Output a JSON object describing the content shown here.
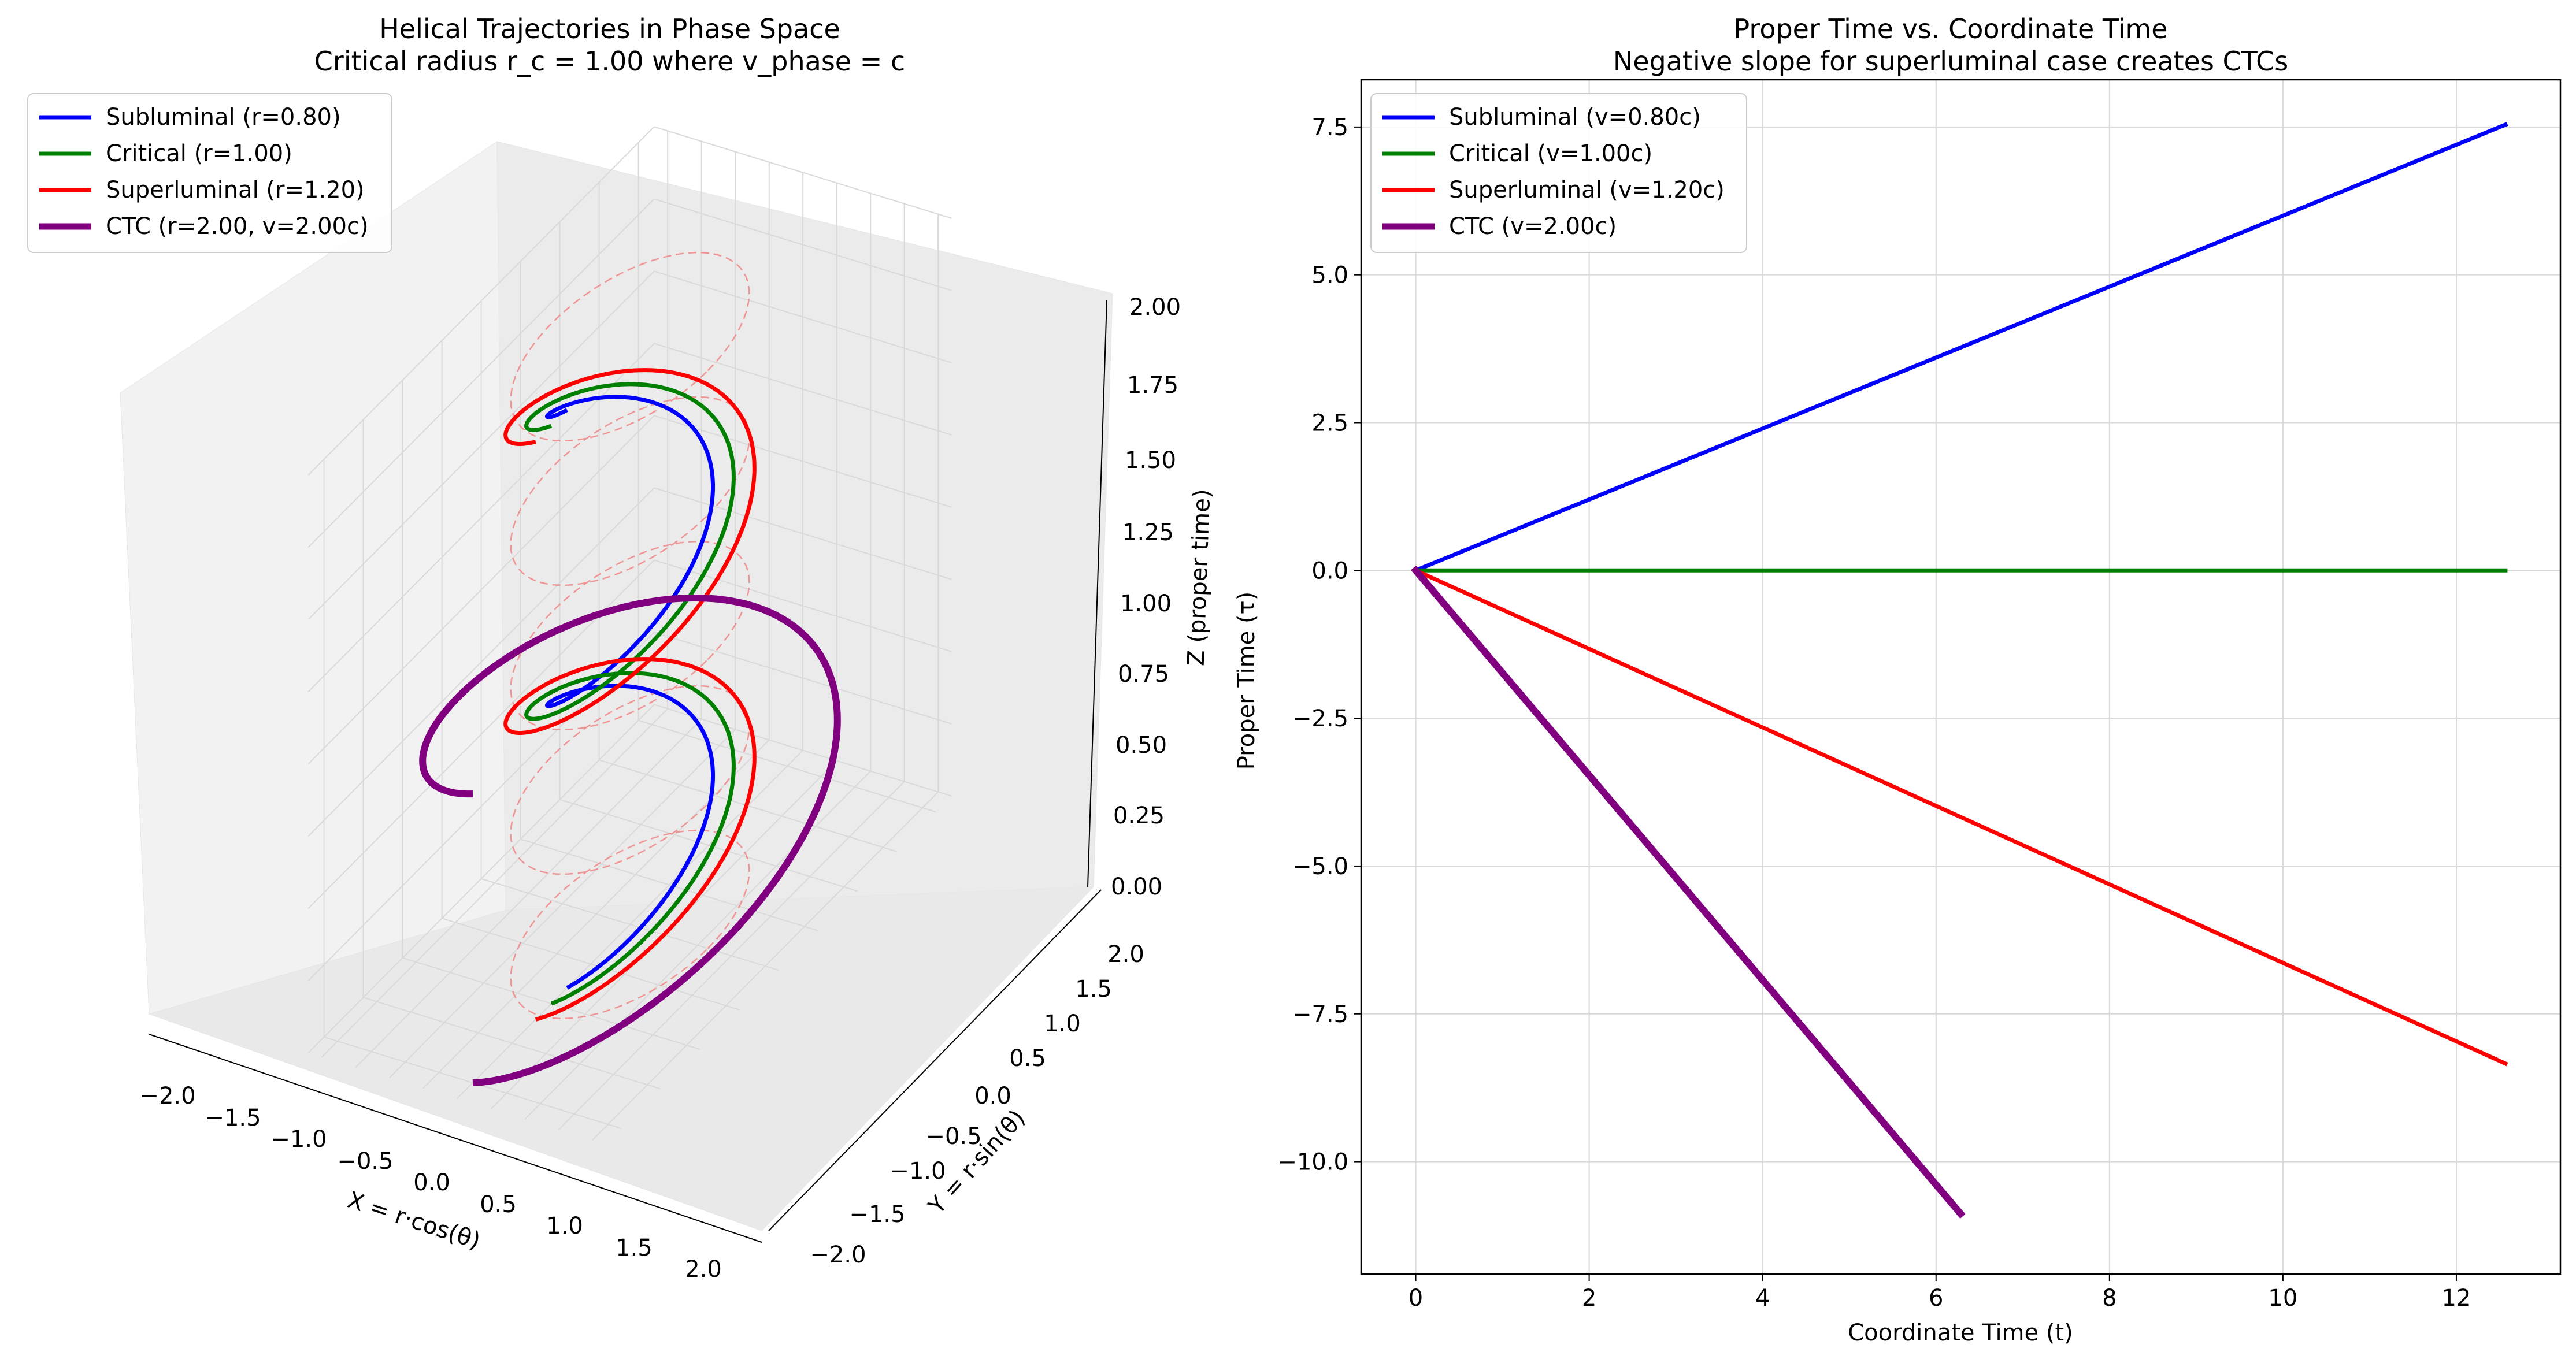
{
  "colors": {
    "subluminal": "#0000ff",
    "critical": "#008000",
    "superluminal": "#ff0000",
    "ctc": "#800080",
    "guide_circles": "#f08080",
    "grid": "#d9d9d9",
    "pane": "#f2f2f2"
  },
  "chart_data": [
    {
      "type": "line3d",
      "title": "Helical Trajectories in Phase Space",
      "subtitle": "Critical radius r_c = 1.00 where v_phase = c",
      "xlabel": "X = r·cos(θ)",
      "ylabel": "Y = r·sin(θ)",
      "zlabel": "Z (proper time)",
      "xlim": [
        -2.2,
        2.2
      ],
      "ylim": [
        -2.2,
        2.2
      ],
      "zlim": [
        0,
        2
      ],
      "x_ticks": [
        "−2.0",
        "−1.5",
        "−1.0",
        "−0.5",
        "0.0",
        "0.5",
        "1.0",
        "1.5",
        "2.0"
      ],
      "y_ticks": [
        "−2.0",
        "−1.5",
        "−1.0",
        "−0.5",
        "0.0",
        "0.5",
        "1.0",
        "1.5",
        "2.0"
      ],
      "z_ticks": [
        "0.00",
        "0.25",
        "0.50",
        "0.75",
        "1.00",
        "1.25",
        "1.50",
        "1.75",
        "2.00"
      ],
      "grid": true,
      "legend_position": "upper-left",
      "series": [
        {
          "name": "Subluminal (r=0.80)",
          "r": 0.8,
          "turns": 2,
          "z_range": [
            0,
            2
          ],
          "color_key": "subluminal"
        },
        {
          "name": "Critical (r=1.00)",
          "r": 1.0,
          "turns": 2,
          "z_range": [
            0,
            2
          ],
          "color_key": "critical"
        },
        {
          "name": "Superluminal (r=1.20)",
          "r": 1.2,
          "turns": 2,
          "z_range": [
            0,
            2
          ],
          "color_key": "superluminal"
        },
        {
          "name": "CTC (r=2.00, v=2.00c)",
          "r": 2.0,
          "turns": 1,
          "z_range": [
            0,
            1
          ],
          "color_key": "ctc"
        }
      ],
      "guide_circles": {
        "r": 1.0,
        "z": [
          0,
          0.5,
          1.0,
          1.5,
          2.0
        ],
        "style": "dashed"
      }
    },
    {
      "type": "line",
      "title": "Proper Time vs. Coordinate Time",
      "subtitle": "Negative slope for superluminal case creates CTCs",
      "xlabel": "Coordinate Time (t)",
      "ylabel": "Proper Time (τ)",
      "xlim": [
        -0.63,
        13.2
      ],
      "ylim": [
        -11.9,
        8.3
      ],
      "x_ticks": [
        0,
        2,
        4,
        6,
        8,
        10,
        12
      ],
      "y_ticks": [
        "−10.0",
        "−7.5",
        "−5.0",
        "−2.5",
        "0.0",
        "2.5",
        "5.0",
        "7.5"
      ],
      "y_tick_values": [
        -10,
        -7.5,
        -5,
        -2.5,
        0,
        2.5,
        5,
        7.5
      ],
      "grid": true,
      "legend_position": "upper-left",
      "series": [
        {
          "name": "Subluminal (v=0.80c)",
          "x": [
            0,
            12.566
          ],
          "y": [
            0,
            7.54
          ],
          "color_key": "subluminal"
        },
        {
          "name": "Critical (v=1.00c)",
          "x": [
            0,
            12.566
          ],
          "y": [
            0,
            0
          ],
          "color_key": "critical"
        },
        {
          "name": "Superluminal (v=1.20c)",
          "x": [
            0,
            12.566
          ],
          "y": [
            0,
            -8.34
          ],
          "color_key": "superluminal"
        },
        {
          "name": "CTC (v=2.00c)",
          "x": [
            0,
            6.283
          ],
          "y": [
            0,
            -10.88
          ],
          "color_key": "ctc"
        }
      ]
    }
  ]
}
